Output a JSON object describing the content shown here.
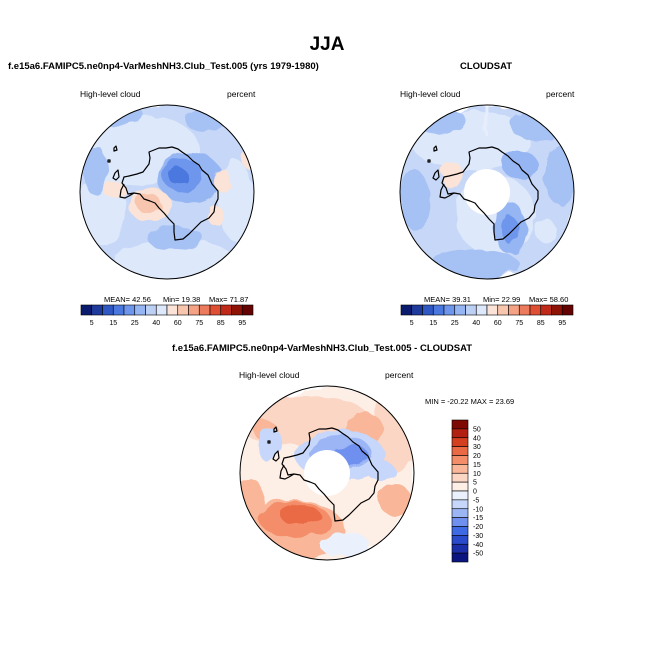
{
  "figure": {
    "season": "JJA",
    "colors": {
      "land_outline": "#000000",
      "map_border": "#000000",
      "missing": "#ffffff"
    }
  },
  "chart_data": [
    {
      "type": "heatmap",
      "id": "model",
      "title": "f.e15a6.FAMIPC5.ne0np4-VarMeshNH3.Club_Test.005 (yrs 1979-1980)",
      "left_label": "High-level cloud",
      "right_label": "percent",
      "projection": "south-polar stereographic",
      "stats": {
        "mean": "42.56",
        "min": "19.38",
        "max": "71.87"
      },
      "stats_text": {
        "mean": "MEAN=  42.56",
        "min": "Min=  19.38",
        "max": "Max=  71.87"
      },
      "colorbar": {
        "orientation": "horizontal",
        "levels": [
          5,
          10,
          15,
          20,
          25,
          30,
          40,
          50,
          60,
          70,
          75,
          80,
          85,
          90,
          95
        ],
        "tick_labels": [
          "5",
          "15",
          "25",
          "40",
          "60",
          "75",
          "85",
          "95"
        ],
        "colors": [
          "#0a1b6e",
          "#1e3a9c",
          "#2f58c4",
          "#4b78de",
          "#6e96ec",
          "#96b5f3",
          "#bcd0f6",
          "#dde8fa",
          "#fbe3d7",
          "#f8c6ae",
          "#f4a184",
          "#ec7a5c",
          "#de4f34",
          "#c02a18",
          "#8f1206",
          "#640302"
        ]
      }
    },
    {
      "type": "heatmap",
      "id": "obs",
      "title": "CLOUDSAT",
      "left_label": "High-level cloud",
      "right_label": "percent",
      "projection": "south-polar stereographic",
      "stats": {
        "mean": "39.31",
        "min": "22.99",
        "max": "58.60"
      },
      "stats_text": {
        "mean": "MEAN=  39.31",
        "min": "Min=  22.99",
        "max": "Max=  58.60"
      },
      "colorbar": {
        "orientation": "horizontal",
        "levels": [
          5,
          10,
          15,
          20,
          25,
          30,
          40,
          50,
          60,
          70,
          75,
          80,
          85,
          90,
          95
        ],
        "tick_labels": [
          "5",
          "15",
          "25",
          "40",
          "60",
          "75",
          "85",
          "95"
        ],
        "colors": [
          "#0a1b6e",
          "#1e3a9c",
          "#2f58c4",
          "#4b78de",
          "#6e96ec",
          "#96b5f3",
          "#bcd0f6",
          "#dde8fa",
          "#fbe3d7",
          "#f8c6ae",
          "#f4a184",
          "#ec7a5c",
          "#de4f34",
          "#c02a18",
          "#8f1206",
          "#640302"
        ]
      }
    },
    {
      "type": "heatmap",
      "id": "diff",
      "title": "f.e15a6.FAMIPC5.ne0np4-VarMeshNH3.Club_Test.005 - CLOUDSAT",
      "left_label": "High-level cloud",
      "right_label": "percent",
      "projection": "south-polar stereographic",
      "stats": {
        "min": "-20.22",
        "max": "23.69"
      },
      "stats_text": "MIN = -20.22  MAX =  23.69",
      "colorbar": {
        "orientation": "vertical",
        "levels": [
          -50,
          -40,
          -30,
          -20,
          -15,
          -10,
          -5,
          0,
          5,
          10,
          15,
          20,
          30,
          40,
          50
        ],
        "tick_labels": [
          "50",
          "40",
          "30",
          "20",
          "15",
          "10",
          "5",
          "0",
          "-5",
          "-10",
          "-15",
          "-20",
          "-30",
          "-40",
          "-50"
        ],
        "colors": [
          "#0a1580",
          "#1b2fa8",
          "#2a4bcc",
          "#3e6ae4",
          "#6f90ef",
          "#9bb5f5",
          "#c6d7fb",
          "#eaf1fd",
          "#fdeee6",
          "#fcd6c4",
          "#f9b698",
          "#f48e6a",
          "#e96a44",
          "#d2401f",
          "#b12010",
          "#7e0904"
        ]
      }
    }
  ]
}
